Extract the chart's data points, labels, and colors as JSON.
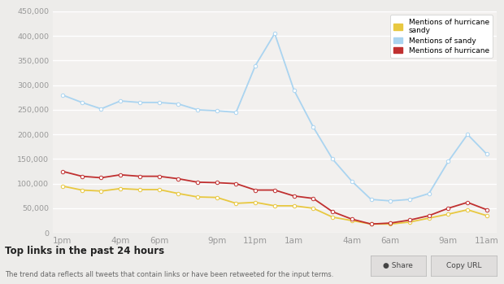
{
  "x_labels": [
    "1pm",
    "4pm",
    "6pm",
    "9pm",
    "11pm",
    "1am",
    "4am",
    "6am",
    "9am",
    "11am"
  ],
  "x_ticks": [
    0,
    3,
    5,
    8,
    10,
    12,
    15,
    17,
    20,
    22
  ],
  "n_points": 23,
  "sandy_mentions": [
    280000,
    265000,
    252000,
    268000,
    265000,
    265000,
    262000,
    250000,
    248000,
    245000,
    340000,
    405000,
    290000,
    215000,
    150000,
    105000,
    68000,
    65000,
    68000,
    80000,
    145000,
    200000,
    160000
  ],
  "hurricane_sandy_mentions": [
    95000,
    87000,
    85000,
    90000,
    88000,
    88000,
    80000,
    73000,
    72000,
    60000,
    62000,
    55000,
    55000,
    50000,
    32000,
    25000,
    18000,
    18000,
    22000,
    30000,
    38000,
    47000,
    35000
  ],
  "hurricane_mentions": [
    125000,
    115000,
    112000,
    118000,
    115000,
    115000,
    110000,
    103000,
    102000,
    100000,
    87000,
    87000,
    75000,
    70000,
    43000,
    28000,
    18000,
    20000,
    26000,
    35000,
    50000,
    62000,
    47000
  ],
  "sandy_color": "#aad4f0",
  "hurricane_sandy_color": "#e8c840",
  "hurricane_color": "#c03030",
  "background_color": "#edecea",
  "plot_bg_color": "#f2f0ee",
  "grid_color": "#ffffff",
  "ylim": [
    0,
    450000
  ],
  "yticks": [
    0,
    50000,
    100000,
    150000,
    200000,
    250000,
    300000,
    350000,
    400000,
    450000
  ],
  "title_below": "Top links in the past 24 hours",
  "subtitle_below": "The trend data reflects all tweets that contain links or have been retweeted for the input terms.",
  "legend_labels": [
    "Mentions of hurricane\nsandy",
    "Mentions of sandy",
    "Mentions of hurricane"
  ]
}
